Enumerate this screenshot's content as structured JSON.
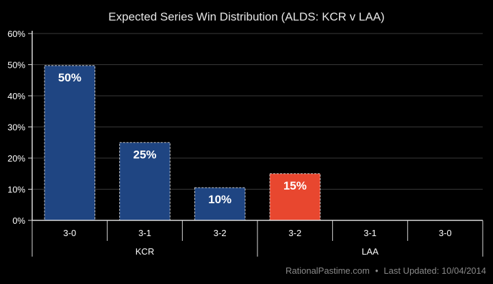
{
  "chart_data": {
    "type": "bar",
    "title": "Expected Series Win Distribution (ALDS: KCR v LAA)",
    "categories": [
      "3-0",
      "3-1",
      "3-2",
      "3-2",
      "3-1",
      "3-0"
    ],
    "groups": [
      {
        "name": "KCR",
        "span": 3
      },
      {
        "name": "LAA",
        "span": 3
      }
    ],
    "values": [
      49.7,
      25,
      10.5,
      15,
      0,
      0
    ],
    "data_labels": [
      "50%",
      "25%",
      "10%",
      "15%",
      "",
      ""
    ],
    "bar_colors": [
      "#1f4582",
      "#1f4582",
      "#1f4582",
      "#e8472f",
      "#e8472f",
      "#e8472f"
    ],
    "ylim": [
      0,
      60
    ],
    "yticks": [
      0,
      10,
      20,
      30,
      40,
      50,
      60
    ],
    "ytick_labels": [
      "0%",
      "10%",
      "20%",
      "30%",
      "40%",
      "50%",
      "60%"
    ],
    "grid": true,
    "xlabel": "",
    "ylabel": ""
  },
  "footer": {
    "site": "RationalPastime.com",
    "separator": "•",
    "updated": "Last Updated: 10/04/2014"
  }
}
